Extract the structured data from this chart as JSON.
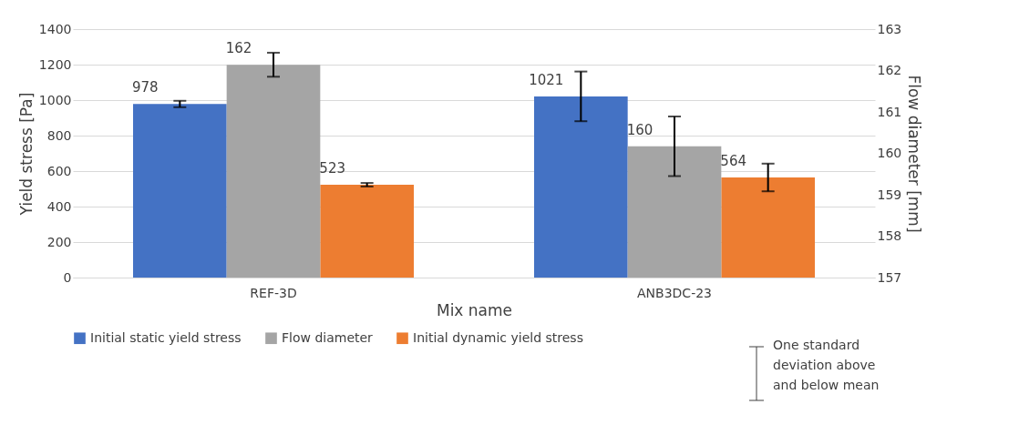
{
  "chart_data": {
    "type": "bar",
    "xlabel": "Mix name",
    "ylabel": "Yield stress [Pa]",
    "y2label": "Flow diameter [mm]",
    "categories": [
      "REF-3D",
      "ANB3DC-23"
    ],
    "series": [
      {
        "name": "Initial static yield stress",
        "color": "#4472c4",
        "values": [
          978,
          1021
        ],
        "errors": [
          18,
          140
        ],
        "value_labels": [
          "978",
          "1021"
        ]
      },
      {
        "name": "Flow diameter",
        "color": "#a5a5a5",
        "axis": "y2",
        "values": [
          162.14,
          160.17
        ],
        "errors": [
          0.29,
          0.72
        ],
        "value_labels": [
          "162",
          "160"
        ]
      },
      {
        "name": "Initial dynamic yield stress",
        "color": "#ed7d31",
        "values": [
          523,
          564
        ],
        "errors": [
          10,
          78
        ],
        "value_labels": [
          "523",
          "564"
        ]
      }
    ],
    "ylim": [
      0,
      1400
    ],
    "yticks": [
      0,
      200,
      400,
      600,
      800,
      1000,
      1200,
      1400
    ],
    "y2lim": [
      157,
      163
    ],
    "y2ticks": [
      157,
      158,
      159,
      160,
      161,
      162,
      163
    ],
    "grid": "y",
    "legend": "bottom",
    "annotations": [
      "One standard deviation above and below mean"
    ]
  }
}
